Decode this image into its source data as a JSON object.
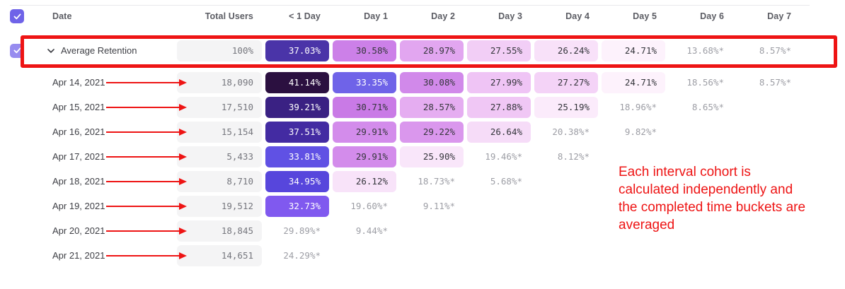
{
  "colors": {
    "annotation_red": "#ee1414",
    "checkbox_purple": "#6f63e8",
    "checkbox_purple_light": "#978cef",
    "heatmap_darkest": "#2b1040",
    "heatmap_lightest": "#fdf2fc"
  },
  "table": {
    "columns": [
      "Date",
      "Total Users",
      "< 1 Day",
      "Day 1",
      "Day 2",
      "Day 3",
      "Day 4",
      "Day 5",
      "Day 6",
      "Day 7"
    ],
    "average_row": {
      "label": "Average Retention",
      "total": "100%",
      "cells": [
        {
          "v": "37.03%",
          "bg": "#4a34a8",
          "fg": "#ffffff"
        },
        {
          "v": "30.58%",
          "bg": "#cc80e8",
          "fg": "#35363c"
        },
        {
          "v": "28.97%",
          "bg": "#e2a6f0",
          "fg": "#35363c"
        },
        {
          "v": "27.55%",
          "bg": "#f2cef6",
          "fg": "#35363c"
        },
        {
          "v": "26.24%",
          "bg": "#f8e1f9",
          "fg": "#35363c"
        },
        {
          "v": "24.71%",
          "bg": "#fdf2fc",
          "fg": "#35363c"
        },
        {
          "v": "13.68%*",
          "muted": true
        },
        {
          "v": "8.57%*",
          "muted": true
        }
      ]
    },
    "rows": [
      {
        "date": "Apr 14, 2021",
        "total": "18,090",
        "cells": [
          {
            "v": "41.14%",
            "bg": "#2b1040",
            "fg": "#ffffff"
          },
          {
            "v": "33.35%",
            "bg": "#6f63e8",
            "fg": "#ffffff"
          },
          {
            "v": "30.08%",
            "bg": "#d189ea",
            "fg": "#35363c"
          },
          {
            "v": "27.99%",
            "bg": "#efc4f5",
            "fg": "#35363c"
          },
          {
            "v": "27.27%",
            "bg": "#f4d3f7",
            "fg": "#35363c"
          },
          {
            "v": "24.71%",
            "bg": "#fdf2fc",
            "fg": "#35363c"
          },
          {
            "v": "18.56%*",
            "muted": true
          },
          {
            "v": "8.57%*",
            "muted": true
          }
        ]
      },
      {
        "date": "Apr 15, 2021",
        "total": "17,510",
        "cells": [
          {
            "v": "39.21%",
            "bg": "#3a2183",
            "fg": "#ffffff"
          },
          {
            "v": "30.71%",
            "bg": "#c97ae6",
            "fg": "#35363c"
          },
          {
            "v": "28.57%",
            "bg": "#e5adf1",
            "fg": "#35363c"
          },
          {
            "v": "27.88%",
            "bg": "#f0c7f5",
            "fg": "#35363c"
          },
          {
            "v": "25.19%",
            "bg": "#fbebfb",
            "fg": "#35363c"
          },
          {
            "v": "18.96%*",
            "muted": true
          },
          {
            "v": "8.65%*",
            "muted": true
          }
        ]
      },
      {
        "date": "Apr 16, 2021",
        "total": "15,154",
        "cells": [
          {
            "v": "37.51%",
            "bg": "#432ba2",
            "fg": "#ffffff"
          },
          {
            "v": "29.91%",
            "bg": "#d38ceb",
            "fg": "#35363c"
          },
          {
            "v": "29.22%",
            "bg": "#da97ed",
            "fg": "#35363c"
          },
          {
            "v": "26.64%",
            "bg": "#f6dcf8",
            "fg": "#35363c"
          },
          {
            "v": "20.38%*",
            "muted": true
          },
          {
            "v": "9.82%*",
            "muted": true
          }
        ]
      },
      {
        "date": "Apr 17, 2021",
        "total": "5,433",
        "cells": [
          {
            "v": "33.81%",
            "bg": "#6051e4",
            "fg": "#ffffff"
          },
          {
            "v": "29.91%",
            "bg": "#d38ceb",
            "fg": "#35363c"
          },
          {
            "v": "25.90%",
            "bg": "#f9e6fa",
            "fg": "#35363c"
          },
          {
            "v": "19.46%*",
            "muted": true
          },
          {
            "v": "8.12%*",
            "muted": true
          }
        ]
      },
      {
        "date": "Apr 18, 2021",
        "total": "8,710",
        "cells": [
          {
            "v": "34.95%",
            "bg": "#5746dc",
            "fg": "#ffffff"
          },
          {
            "v": "26.12%",
            "bg": "#f8e3f9",
            "fg": "#35363c"
          },
          {
            "v": "18.73%*",
            "muted": true
          },
          {
            "v": "5.68%*",
            "muted": true
          }
        ]
      },
      {
        "date": "Apr 19, 2021",
        "total": "19,512",
        "cells": [
          {
            "v": "32.73%",
            "bg": "#8059ef",
            "fg": "#ffffff"
          },
          {
            "v": "19.60%*",
            "muted": true
          },
          {
            "v": "9.11%*",
            "muted": true
          }
        ]
      },
      {
        "date": "Apr 20, 2021",
        "total": "18,845",
        "cells": [
          {
            "v": "29.89%*",
            "muted": true
          },
          {
            "v": "9.44%*",
            "muted": true
          }
        ]
      },
      {
        "date": "Apr 21, 2021",
        "total": "14,651",
        "cells": [
          {
            "v": "24.29%*",
            "muted": true
          }
        ]
      }
    ]
  },
  "annotation": {
    "lines": [
      "Each interval cohort is",
      "calculated independently and",
      "the completed time buckets are",
      "averaged"
    ]
  }
}
